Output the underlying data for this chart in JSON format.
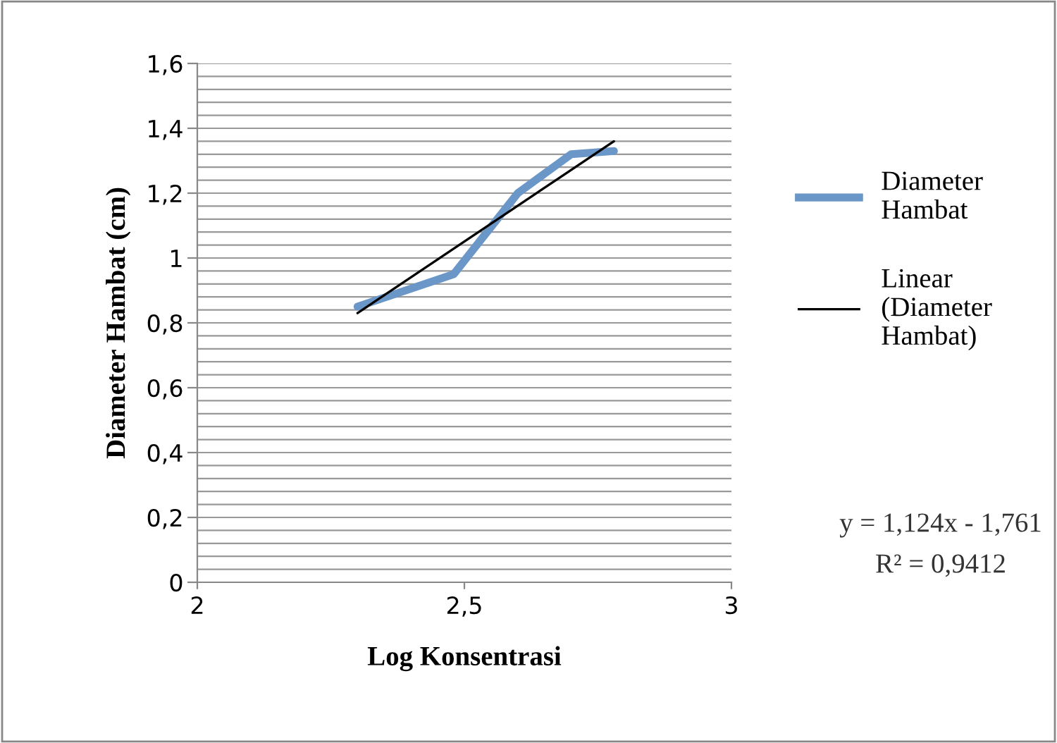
{
  "chart_data": {
    "type": "line",
    "xlabel": "Log Konsentrasi",
    "ylabel": "Diameter Hambat (cm)",
    "series": [
      {
        "name": "Diameter Hambat",
        "color": "#6b97c8",
        "x": [
          2.3,
          2.48,
          2.6,
          2.7,
          2.78
        ],
        "values": [
          0.85,
          0.95,
          1.2,
          1.32,
          1.33
        ]
      },
      {
        "name": "Linear (Diameter Hambat)",
        "color": "#000000",
        "x": [
          2.3,
          2.78
        ],
        "values": [
          0.83,
          1.36
        ]
      }
    ],
    "xlim": [
      2,
      3
    ],
    "xticks": [
      2,
      {
        "value": 2.5,
        "label": "2,5"
      },
      3
    ],
    "ylim": [
      0,
      1.6
    ],
    "yticks": [
      0,
      {
        "value": 0.04,
        "label": null
      },
      {
        "value": 0.08,
        "label": null
      },
      {
        "value": 0.12,
        "label": null
      },
      {
        "value": 0.16,
        "label": null
      },
      {
        "value": 0.2,
        "label": "0,2"
      },
      {
        "value": 0.24,
        "label": null
      },
      {
        "value": 0.28,
        "label": null
      },
      {
        "value": 0.32,
        "label": null
      },
      {
        "value": 0.36,
        "label": null
      },
      {
        "value": 0.4,
        "label": "0,4"
      },
      {
        "value": 0.44,
        "label": null
      },
      {
        "value": 0.48,
        "label": null
      },
      {
        "value": 0.52,
        "label": null
      },
      {
        "value": 0.56,
        "label": null
      },
      {
        "value": 0.6,
        "label": "0,6"
      },
      {
        "value": 0.64,
        "label": null
      },
      {
        "value": 0.68,
        "label": null
      },
      {
        "value": 0.72,
        "label": null
      },
      {
        "value": 0.76,
        "label": null
      },
      {
        "value": 0.8,
        "label": "0,8"
      },
      {
        "value": 0.84,
        "label": null
      },
      {
        "value": 0.88,
        "label": null
      },
      {
        "value": 0.92,
        "label": null
      },
      {
        "value": 0.96,
        "label": null
      },
      1,
      {
        "value": 1.04,
        "label": null
      },
      {
        "value": 1.08,
        "label": null
      },
      {
        "value": 1.12,
        "label": null
      },
      {
        "value": 1.16,
        "label": null
      },
      {
        "value": 1.2,
        "label": "1,2"
      },
      {
        "value": 1.24,
        "label": null
      },
      {
        "value": 1.28,
        "label": null
      },
      {
        "value": 1.32,
        "label": null
      },
      {
        "value": 1.36,
        "label": null
      },
      {
        "value": 1.4,
        "label": "1,4"
      },
      {
        "value": 1.44,
        "label": null
      },
      {
        "value": 1.48,
        "label": null
      },
      {
        "value": 1.52,
        "label": null
      },
      {
        "value": 1.56,
        "label": null
      },
      {
        "value": 1.6,
        "label": "1,6"
      }
    ],
    "grid": "y",
    "legend": "right",
    "marker": "none",
    "line_style": "solid",
    "annotations": [
      "y = 1,124x - 1,761",
      "R² = 0,9412"
    ]
  }
}
